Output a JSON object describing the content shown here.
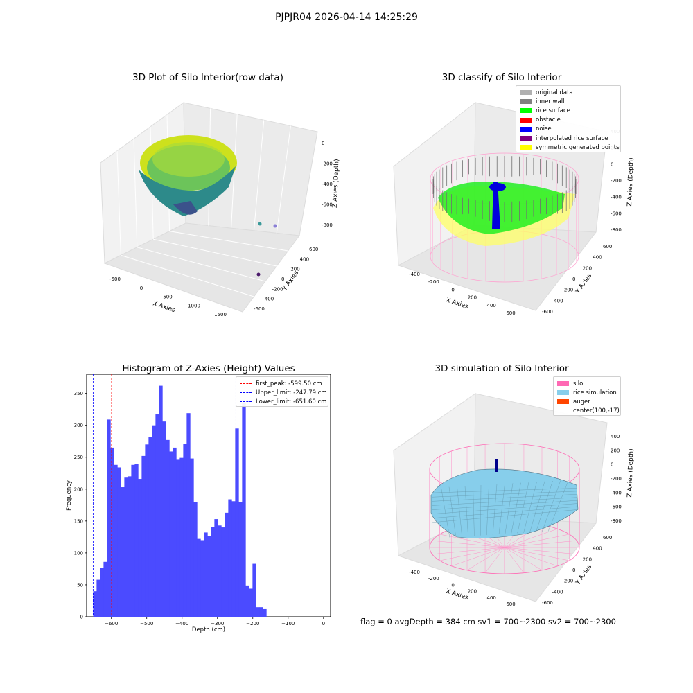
{
  "figure_title": "PJPJR04 2026-04-14 14:25:29",
  "status": {
    "text": "flag = 0     avgDepth = 384 cm  sv1 = 700~2300  sv2 = 700~2300"
  },
  "colors": {
    "hist_bar": "#4b4bff",
    "first_peak_line": "#ff0000",
    "limit_lines": "#0000ff",
    "silo": "#ff69b4",
    "rice_simulation": "#87ceeb",
    "auger": "#ff4500"
  },
  "chart_data": [
    {
      "type": "scatter",
      "title": "3D Plot of Silo Interior(row data)",
      "projection": "3d",
      "xlabel": "X Axies",
      "ylabel": "Y Axies",
      "zlabel": "Z Axies (Depth)",
      "x_ticks": [
        "-500",
        "0",
        "500",
        "1000",
        "1500"
      ],
      "y_ticks": [
        "-600",
        "-400",
        "-200",
        "0",
        "200",
        "400",
        "600"
      ],
      "z_ticks": [
        "0",
        "-200",
        "-400",
        "-600",
        "-800"
      ],
      "colormap": "viridis"
    },
    {
      "type": "scatter",
      "title": "3D classify of Silo Interior",
      "projection": "3d",
      "xlabel": "X Axies",
      "ylabel": "Y Axies",
      "zlabel": "Z Axies (Depth)",
      "x_ticks": [
        "-400",
        "-200",
        "0",
        "200",
        "400",
        "600"
      ],
      "y_ticks": [
        "-600",
        "-400",
        "-200",
        "0",
        "200",
        "400",
        "600"
      ],
      "z_ticks": [
        "400",
        "200",
        "0",
        "-200",
        "-400",
        "-600",
        "-800"
      ],
      "legend": [
        {
          "label": "original data",
          "color": "#b0b0b0"
        },
        {
          "label": "inner wall",
          "color": "#808080"
        },
        {
          "label": "rice surface",
          "color": "#00ff00"
        },
        {
          "label": "obstacle",
          "color": "#ff0000"
        },
        {
          "label": "noise",
          "color": "#0000ff"
        },
        {
          "label": "interpolated rice surface",
          "color": "#800080"
        },
        {
          "label": "symmetric generated points",
          "color": "#ffff00"
        }
      ]
    },
    {
      "type": "bar",
      "title": "Histogram of Z-Axies (Height) Values",
      "xlabel": "Depth (cm)",
      "ylabel": "Frequency",
      "xlim": [
        -670,
        20
      ],
      "ylim": [
        0,
        380
      ],
      "x_ticks": [
        -600,
        -500,
        -400,
        -300,
        -200,
        -100,
        0
      ],
      "y_ticks": [
        0,
        50,
        100,
        150,
        200,
        250,
        300,
        350
      ],
      "bin_start": -651.6,
      "bin_width": 9.8,
      "values": [
        40,
        58,
        77,
        86,
        309,
        265,
        238,
        234,
        203,
        218,
        220,
        238,
        239,
        216,
        252,
        270,
        282,
        300,
        317,
        362,
        306,
        277,
        259,
        265,
        246,
        249,
        271,
        319,
        248,
        180,
        122,
        120,
        132,
        127,
        141,
        153,
        143,
        140,
        163,
        184,
        181,
        295,
        180,
        335,
        49,
        44,
        83,
        15,
        15,
        12
      ],
      "vlines": [
        {
          "label": "first_peak: -599.50 cm",
          "x": -599.5,
          "color": "#ff0000"
        },
        {
          "label": "Upper_limit: -247.79 cm",
          "x": -247.79,
          "color": "#0000ff"
        },
        {
          "label": "Lower_limit: -651.60 cm",
          "x": -651.6,
          "color": "#0000ff"
        }
      ]
    },
    {
      "type": "surface",
      "title": "3D simulation of Silo Interior",
      "projection": "3d",
      "xlabel": "X Axies",
      "ylabel": "Y Axies",
      "zlabel": "Z Axies (Depth)",
      "x_ticks": [
        "-400",
        "-200",
        "0",
        "200",
        "400",
        "600"
      ],
      "y_ticks": [
        "-600",
        "-400",
        "-200",
        "0",
        "200",
        "400",
        "600"
      ],
      "z_ticks": [
        "400",
        "200",
        "0",
        "-200",
        "-400",
        "-600",
        "-800"
      ],
      "legend": [
        {
          "label": "silo",
          "color": "#ff69b4"
        },
        {
          "label": "rice simulation",
          "color": "#87ceeb"
        },
        {
          "label": "auger",
          "color": "#ff4500"
        },
        {
          "label": "center(100,-17)",
          "color": ""
        }
      ]
    }
  ]
}
